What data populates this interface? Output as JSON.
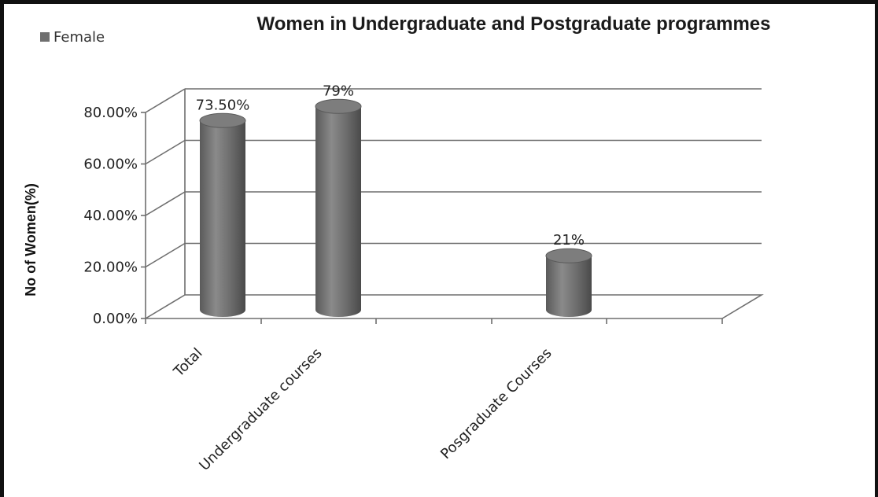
{
  "chart_data": {
    "type": "bar",
    "title": "Women in Undergraduate and Postgraduate programmes",
    "ylabel": "No of Women(%)",
    "xlabel": "",
    "ylim": [
      0,
      80
    ],
    "yticks": [
      "0.00%",
      "20.00%",
      "40.00%",
      "60.00%",
      "80.00%"
    ],
    "categories": [
      "Total",
      "Undergraduate courses",
      "Posgraduate Courses"
    ],
    "series": [
      {
        "name": "Female",
        "values": [
          73.5,
          79,
          21
        ],
        "labels": [
          "73.50%",
          "79%",
          "21%"
        ]
      }
    ],
    "legend_position": "top-left",
    "grid": true,
    "bar_color": "#6f6f6f"
  }
}
